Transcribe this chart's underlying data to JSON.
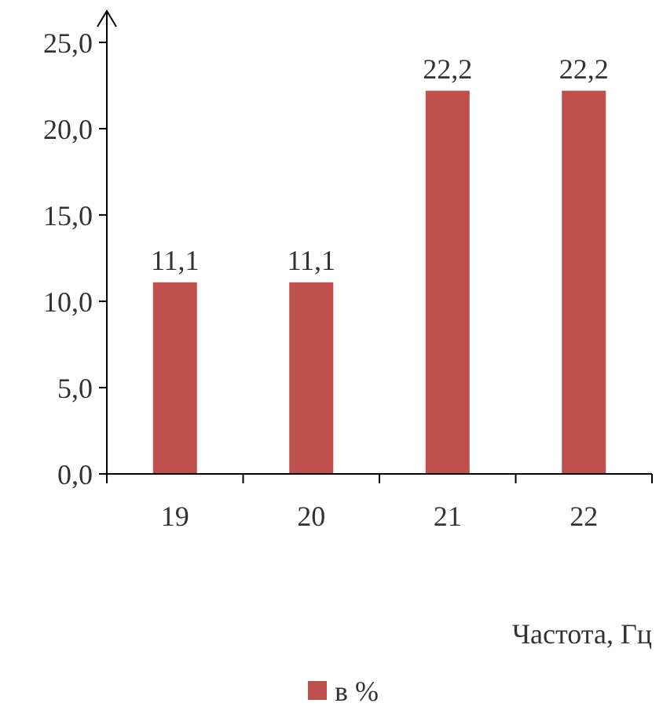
{
  "chart_data": {
    "type": "bar",
    "xlabel": "Частота, Гц",
    "categories": [
      "19",
      "20",
      "21",
      "22"
    ],
    "series": [
      {
        "name": "в %",
        "color": "#c0504d",
        "values": [
          11.1,
          11.1,
          22.2,
          22.2
        ],
        "value_labels": [
          "11,1",
          "11,1",
          "22,2",
          "22,2"
        ]
      }
    ],
    "ylim": [
      0,
      25
    ],
    "yticks": [
      {
        "value": 0,
        "label": "0,0"
      },
      {
        "value": 5,
        "label": "5,0"
      },
      {
        "value": 10,
        "label": "10,0"
      },
      {
        "value": 15,
        "label": "15,0"
      },
      {
        "value": 20,
        "label": "20,0"
      },
      {
        "value": 25,
        "label": "25,0"
      }
    ],
    "grid": false,
    "legend": "bottom"
  }
}
